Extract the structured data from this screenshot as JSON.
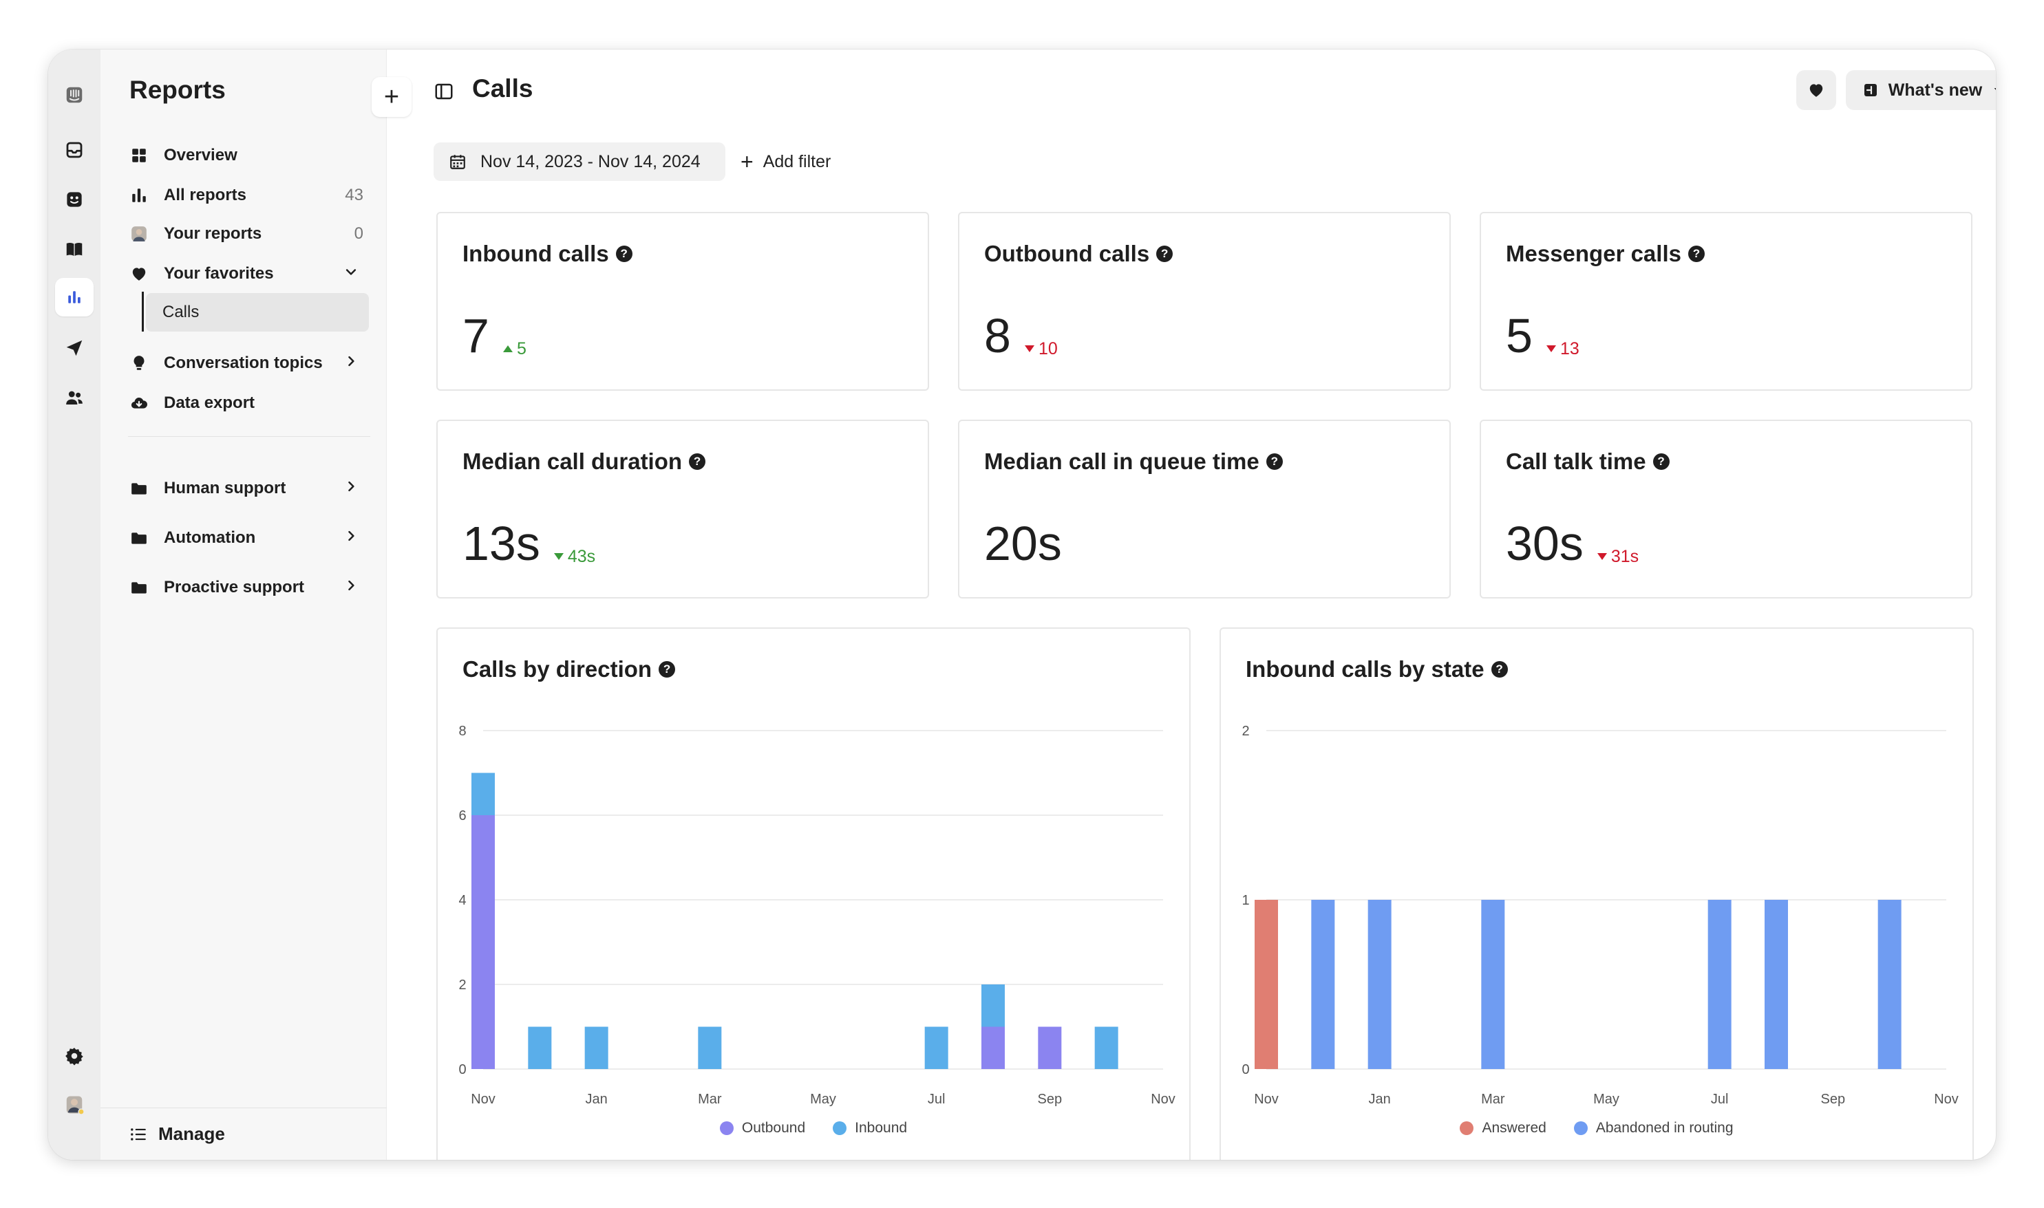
{
  "app": {
    "rail": [
      "intercom-logo-icon",
      "inbox-icon",
      "fin-bot-icon",
      "knowledge-book-icon",
      "reports-icon",
      "outbound-icon",
      "contacts-icon",
      "settings-icon",
      "user-avatar"
    ]
  },
  "sidebar": {
    "title": "Reports",
    "add_label": "+",
    "overview": "Overview",
    "all_reports": "All reports",
    "all_reports_count": "43",
    "your_reports": "Your reports",
    "your_reports_count": "0",
    "your_favorites": "Your favorites",
    "favorite_calls": "Calls",
    "conversation_topics": "Conversation topics",
    "data_export": "Data export",
    "human_support": "Human support",
    "automation": "Automation",
    "proactive_support": "Proactive support",
    "manage": "Manage"
  },
  "header": {
    "title": "Calls",
    "whats_new": "What's new"
  },
  "filters": {
    "date_range": "Nov 14, 2023 - Nov 14, 2024",
    "add_filter": "Add filter"
  },
  "metrics": [
    {
      "title": "Inbound calls",
      "value": "7",
      "delta": "5",
      "dir": "up"
    },
    {
      "title": "Outbound calls",
      "value": "8",
      "delta": "10",
      "dir": "down"
    },
    {
      "title": "Messenger calls",
      "value": "5",
      "delta": "13",
      "dir": "down"
    },
    {
      "title": "Median call duration",
      "value": "13s",
      "delta": "43s",
      "dir": "down-good"
    },
    {
      "title": "Median call in queue time",
      "value": "20s",
      "delta": "",
      "dir": ""
    },
    {
      "title": "Call talk time",
      "value": "30s",
      "delta": "31s",
      "dir": "down"
    }
  ],
  "colors": {
    "outbound": "#8b84f0",
    "inbound": "#5aaeea",
    "answered": "#e07e72",
    "abandoned": "#6f9cf2",
    "up": "#3a9a3a",
    "down": "#d0192b"
  },
  "chart_data": [
    {
      "type": "bar",
      "stacked": true,
      "title": "Calls by direction",
      "x_tick_labels": [
        "Nov",
        "Jan",
        "Mar",
        "May",
        "Jul",
        "Sep",
        "Nov"
      ],
      "categories": [
        "Nov 2023",
        "Dec 2023",
        "Jan 2024",
        "Feb 2024",
        "Mar 2024",
        "Apr 2024",
        "May 2024",
        "Jun 2024",
        "Jul 2024",
        "Aug 2024",
        "Sep 2024",
        "Oct 2024",
        "Nov 2024"
      ],
      "series": [
        {
          "name": "Outbound",
          "values": [
            6,
            0,
            0,
            0,
            0,
            0,
            0,
            0,
            0,
            1,
            1,
            0,
            0
          ]
        },
        {
          "name": "Inbound",
          "values": [
            1,
            1,
            1,
            0,
            1,
            0,
            0,
            0,
            1,
            1,
            0,
            1,
            0
          ]
        }
      ],
      "yticks": [
        0,
        2,
        4,
        6,
        8
      ],
      "ylim": [
        0,
        8
      ],
      "legend": "bottom-center",
      "grid": true
    },
    {
      "type": "bar",
      "stacked": true,
      "title": "Inbound calls by state",
      "x_tick_labels": [
        "Nov",
        "Jan",
        "Mar",
        "May",
        "Jul",
        "Sep",
        "Nov"
      ],
      "categories": [
        "Nov 2023",
        "Dec 2023",
        "Jan 2024",
        "Feb 2024",
        "Mar 2024",
        "Apr 2024",
        "May 2024",
        "Jun 2024",
        "Jul 2024",
        "Aug 2024",
        "Sep 2024",
        "Oct 2024",
        "Nov 2024"
      ],
      "series": [
        {
          "name": "Answered",
          "values": [
            1,
            0,
            0,
            0,
            0,
            0,
            0,
            0,
            0,
            0,
            0,
            0,
            0
          ]
        },
        {
          "name": "Abandoned in routing",
          "values": [
            0,
            1,
            1,
            0,
            1,
            0,
            0,
            0,
            1,
            1,
            0,
            1,
            0
          ]
        }
      ],
      "yticks": [
        0,
        1,
        2
      ],
      "ylim": [
        0,
        2
      ],
      "legend": "bottom-center",
      "grid": true
    }
  ]
}
